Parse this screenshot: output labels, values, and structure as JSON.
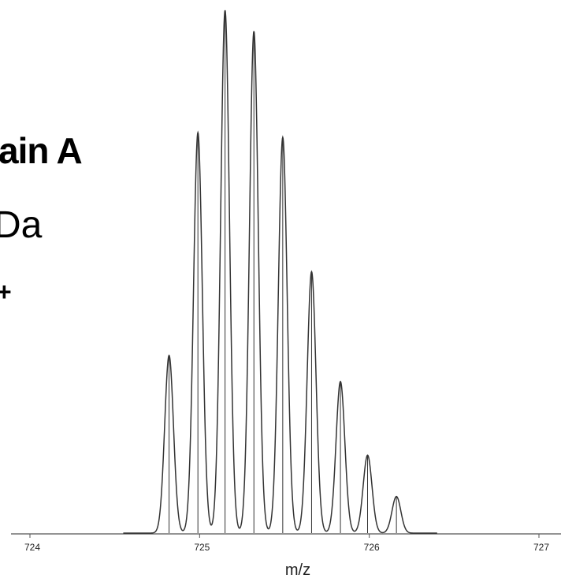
{
  "chart_data": {
    "type": "line",
    "title_fragments": [
      "ain A",
      "Da",
      "+"
    ],
    "xlabel": "m/z",
    "ylabel": "",
    "xlim": [
      723.9,
      727.1
    ],
    "ylim": [
      0,
      1
    ],
    "x_ticks": [
      724,
      725,
      726,
      727
    ],
    "x_tick_labels": [
      "724",
      "725",
      "726",
      "727"
    ],
    "grid": false,
    "legend": "none",
    "peak_width_sigma": 0.026,
    "series": [
      {
        "peaks": [
          {
            "x": 724.82,
            "y": 0.34
          },
          {
            "x": 724.99,
            "y": 0.766
          },
          {
            "x": 725.15,
            "y": 1.0
          },
          {
            "x": 725.32,
            "y": 0.96
          },
          {
            "x": 725.49,
            "y": 0.757
          },
          {
            "x": 725.66,
            "y": 0.5
          },
          {
            "x": 725.83,
            "y": 0.29
          },
          {
            "x": 725.99,
            "y": 0.149
          },
          {
            "x": 726.16,
            "y": 0.07
          }
        ]
      }
    ],
    "colors": {
      "line": "#333333",
      "axis": "#555555",
      "text": "#222222"
    }
  }
}
